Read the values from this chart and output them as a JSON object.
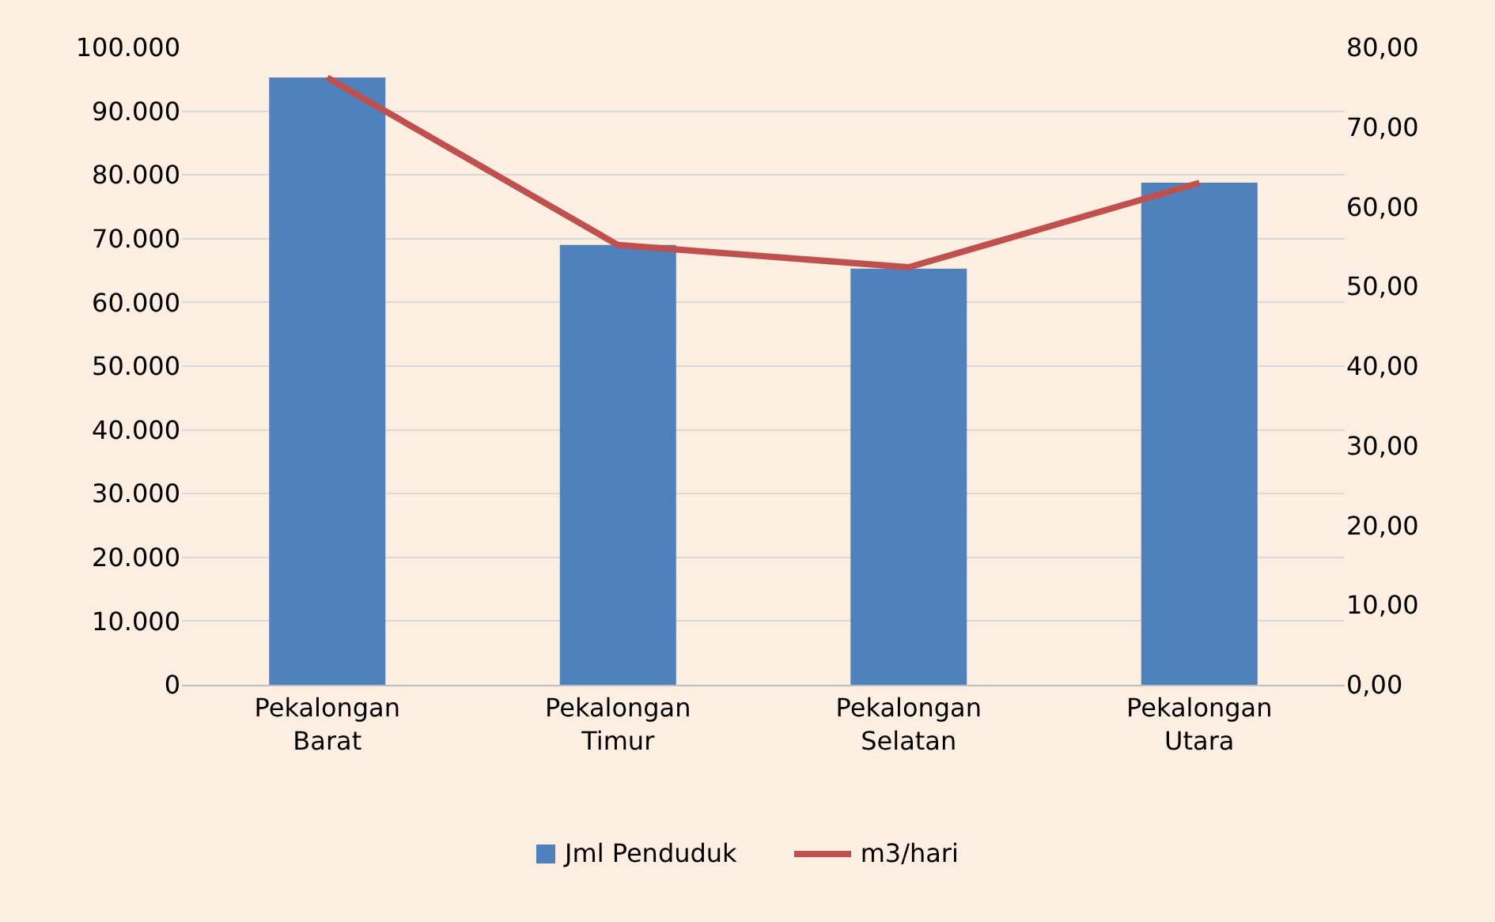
{
  "chart_data": {
    "type": "bar",
    "categories": [
      "Pekalongan Barat",
      "Pekalongan Timur",
      "Pekalongan Selatan",
      "Pekalongan Utara"
    ],
    "series": [
      {
        "name": "Jml Penduduk",
        "color": "#4f81bd",
        "values": [
          95300,
          69000,
          65300,
          78800
        ]
      },
      {
        "name": "m3/hari",
        "type": "line",
        "axis": "y2",
        "color": "#c0504d",
        "values": [
          76.2,
          55.2,
          52.4,
          63.0
        ]
      }
    ],
    "ylim": [
      0,
      100000
    ],
    "yticks": [
      0,
      {
        "value": 10000,
        "label": "10.000"
      },
      {
        "value": 20000,
        "label": "20.000"
      },
      {
        "value": 30000,
        "label": "30.000"
      },
      {
        "value": 40000,
        "label": "40.000"
      },
      {
        "value": 50000,
        "label": "50.000"
      },
      {
        "value": 60000,
        "label": "60.000"
      },
      {
        "value": 70000,
        "label": "70.000"
      },
      {
        "value": 80000,
        "label": "80.000"
      },
      {
        "value": 90000,
        "label": "90.000"
      },
      {
        "value": 100000,
        "label": "100.000"
      }
    ],
    "y2lim": [
      0,
      80
    ],
    "y2ticks": [
      {
        "value": 0,
        "label": "0,00"
      },
      {
        "value": 10,
        "label": "10,00"
      },
      {
        "value": 20,
        "label": "20,00"
      },
      {
        "value": 30,
        "label": "30,00"
      },
      {
        "value": 40,
        "label": "40,00"
      },
      {
        "value": 50,
        "label": "50,00"
      },
      {
        "value": 60,
        "label": "60,00"
      },
      {
        "value": 70,
        "label": "70,00"
      },
      {
        "value": 80,
        "label": "80,00"
      }
    ],
    "grid": "y",
    "legend": "bottom",
    "marker": "none",
    "line_style": "solid"
  }
}
